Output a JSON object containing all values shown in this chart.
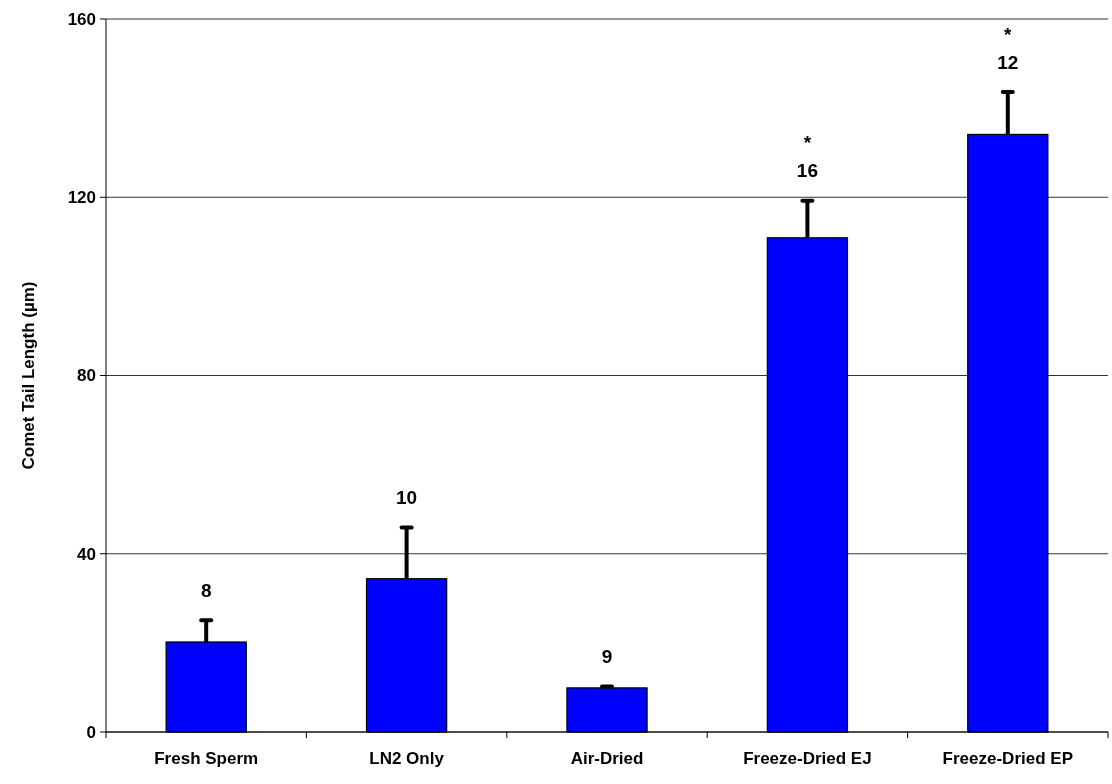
{
  "chart_data": {
    "type": "bar",
    "ylabel": "Comet Tail Length (µm)",
    "categories": [
      "Fresh Sperm",
      "LN2 Only",
      "Air-Dried",
      "Freeze-Dried EJ",
      "Freeze-Dried EP"
    ],
    "values": [
      20.2,
      34.4,
      9.9,
      110.9,
      134.1
    ],
    "errors": [
      [
        20.2,
        25.1
      ],
      [
        34.4,
        45.9
      ],
      [
        9.9,
        10.2
      ],
      [
        110.9,
        119.2
      ],
      [
        134.1,
        143.6
      ]
    ],
    "color": "#0000ff",
    "ylim": [
      0,
      160
    ],
    "yticks": [
      0,
      40,
      80,
      120,
      160
    ],
    "grid": "y",
    "annotations": [
      "8",
      "10",
      "9",
      "16",
      "*",
      "12",
      "*"
    ]
  }
}
